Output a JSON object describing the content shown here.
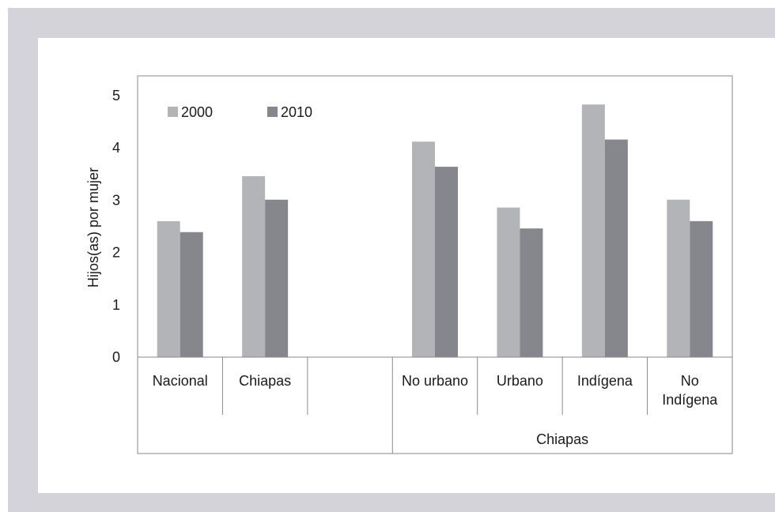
{
  "chart_data": {
    "type": "bar",
    "ylabel": "Hijos(as)  por mujer",
    "ylim": [
      0,
      5
    ],
    "yticks": [
      0,
      1,
      2,
      3,
      4,
      5
    ],
    "legend_position": "top-left",
    "colors": {
      "2000": "#b3b4b8",
      "2010": "#86878c"
    },
    "categories": [
      "Nacional",
      "Chiapas",
      "",
      "No urbano",
      "Urbano",
      "Indígena",
      "No Indígena"
    ],
    "category_lines": [
      [
        "Nacional"
      ],
      [
        "Chiapas"
      ],
      [
        ""
      ],
      [
        "No urbano"
      ],
      [
        "Urbano"
      ],
      [
        "Indígena"
      ],
      [
        "No",
        "Indígena"
      ]
    ],
    "group_label": "Chiapas",
    "series": [
      {
        "name": "2000",
        "values": [
          2.6,
          3.46,
          null,
          4.12,
          2.86,
          4.83,
          3.01
        ]
      },
      {
        "name": "2010",
        "values": [
          2.39,
          3.01,
          null,
          3.64,
          2.46,
          4.16,
          2.6
        ]
      }
    ]
  }
}
